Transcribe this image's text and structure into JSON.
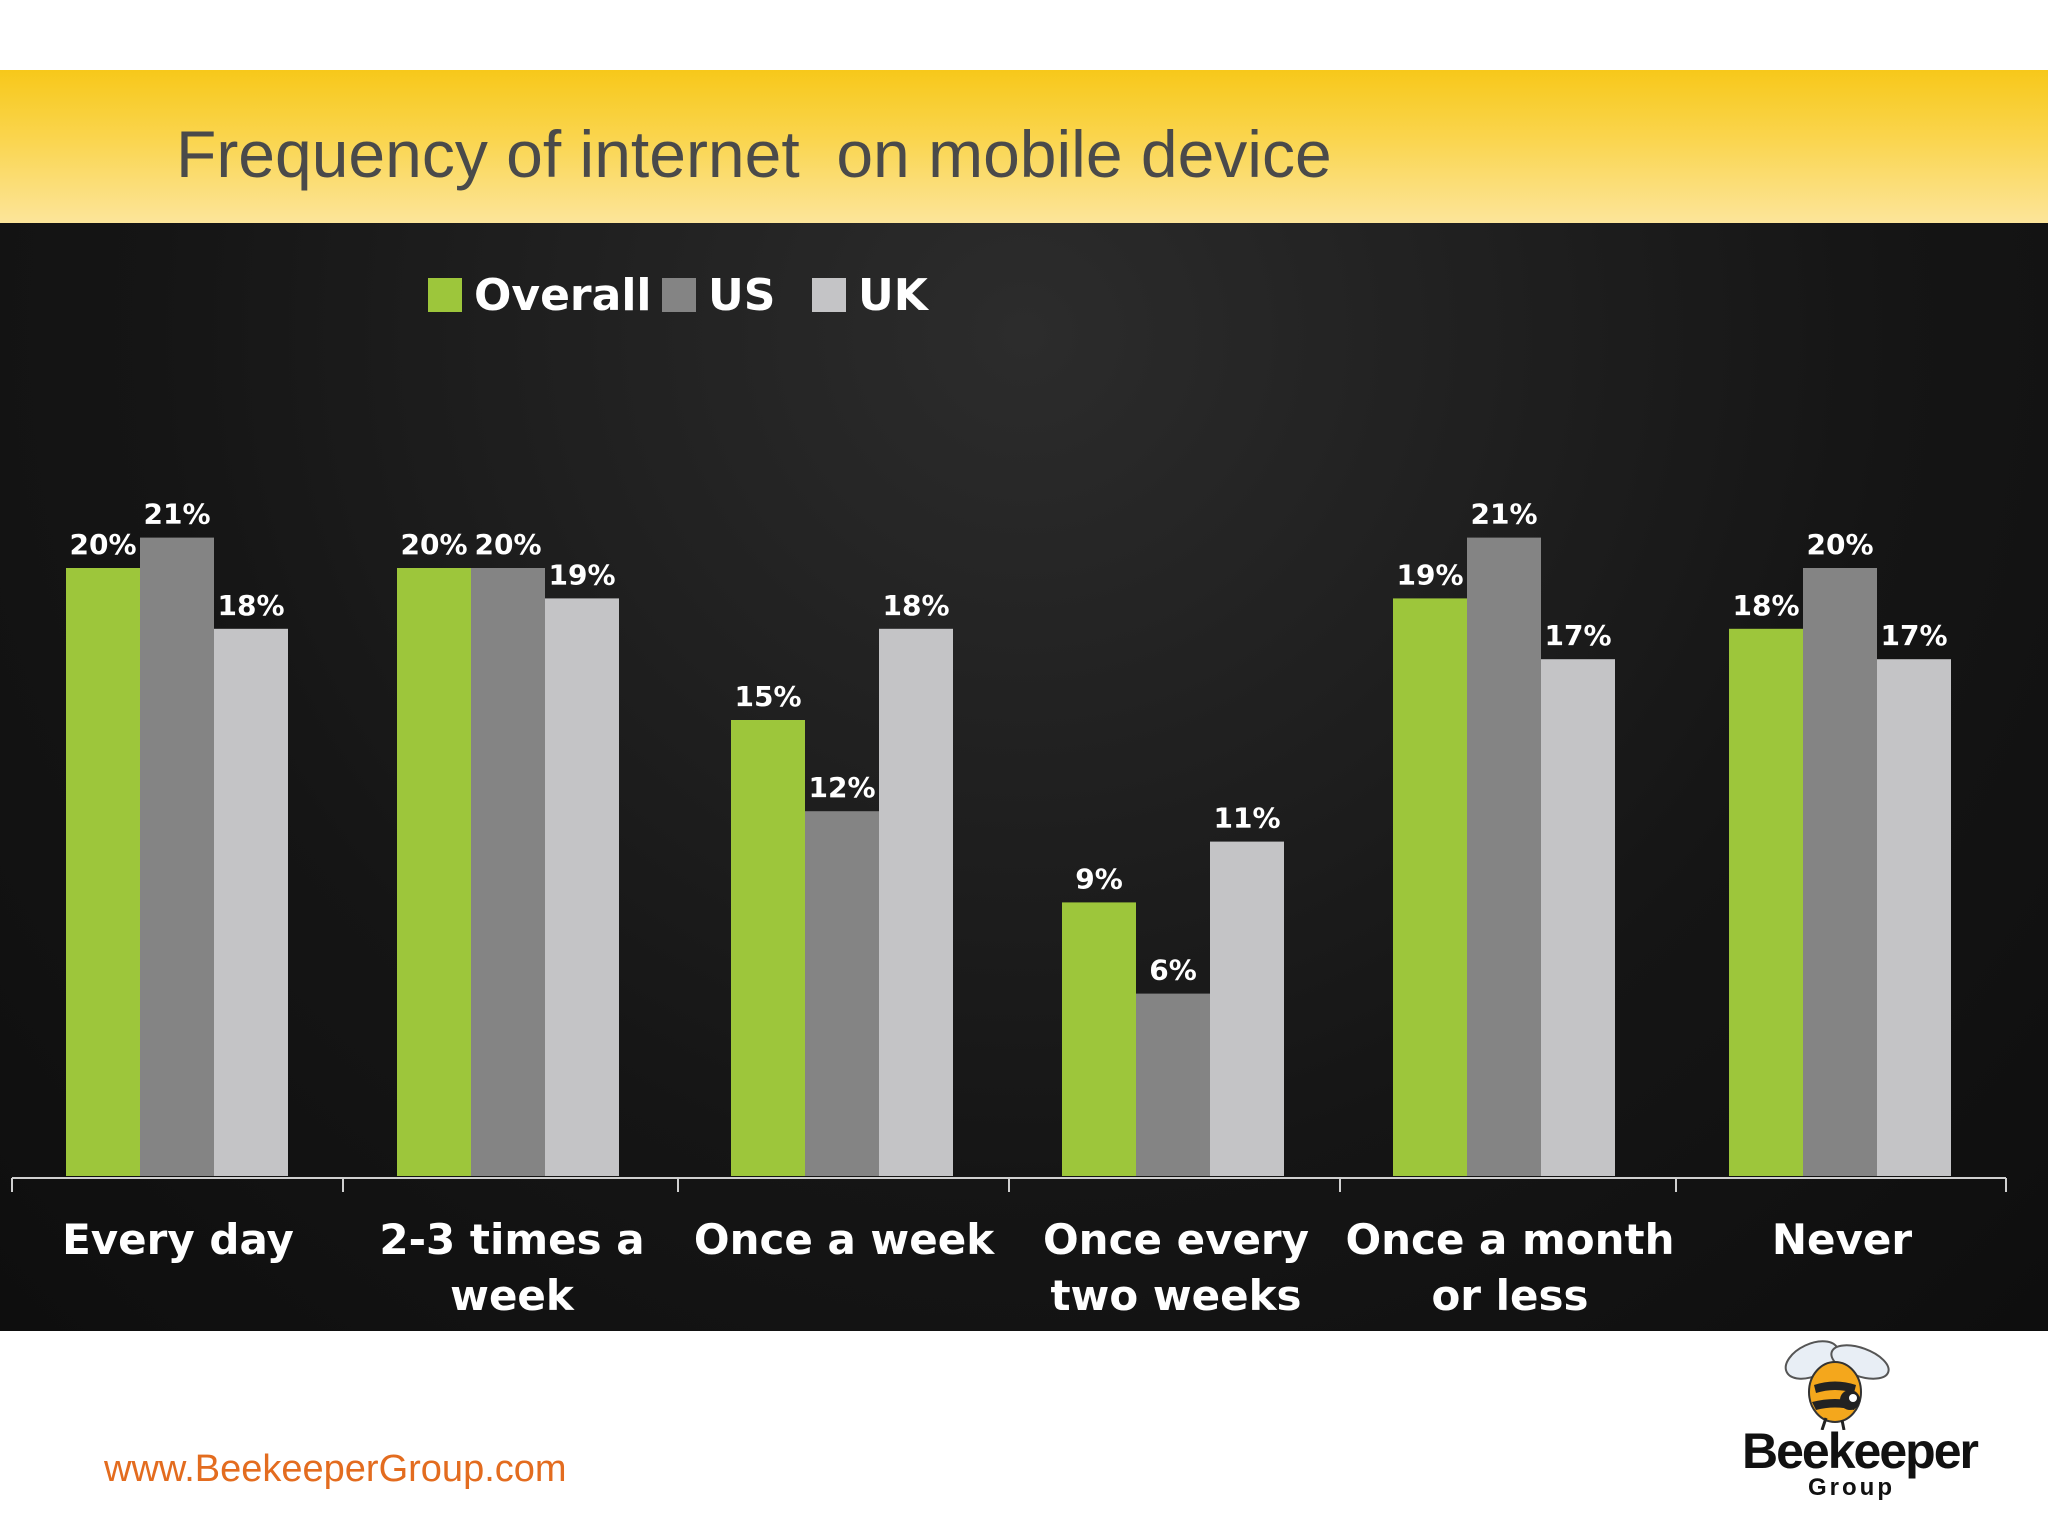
{
  "header": {
    "title": "Frequency of internet  on mobile device"
  },
  "footer": {
    "url": "www.BeekeeperGroup.com"
  },
  "logo": {
    "word": "Beekeeper",
    "sub": "Group",
    "icon": "bee-icon"
  },
  "colors": {
    "overall": "#9dc63b",
    "us": "#848484",
    "uk": "#c4c4c6",
    "label": "#ffffff",
    "title": "#4a4a4a",
    "url": "#e36c1f"
  },
  "chart_data": {
    "type": "bar",
    "title": "Frequency of internet  on mobile device",
    "categories": [
      [
        "Every day"
      ],
      [
        "2-3 times a",
        "week"
      ],
      [
        "Once a week"
      ],
      [
        "Once every",
        "two weeks"
      ],
      [
        "Once a month",
        "or less"
      ],
      [
        "Never"
      ]
    ],
    "series": [
      {
        "name": "Overall",
        "values": [
          20,
          20,
          15,
          9,
          19,
          18
        ]
      },
      {
        "name": "US",
        "values": [
          21,
          20,
          12,
          6,
          21,
          20
        ]
      },
      {
        "name": "UK",
        "values": [
          18,
          19,
          18,
          11,
          17,
          17
        ]
      }
    ],
    "value_suffix": "%",
    "ylim": [
      0,
      22
    ],
    "legend": "top-left",
    "grid": false
  }
}
